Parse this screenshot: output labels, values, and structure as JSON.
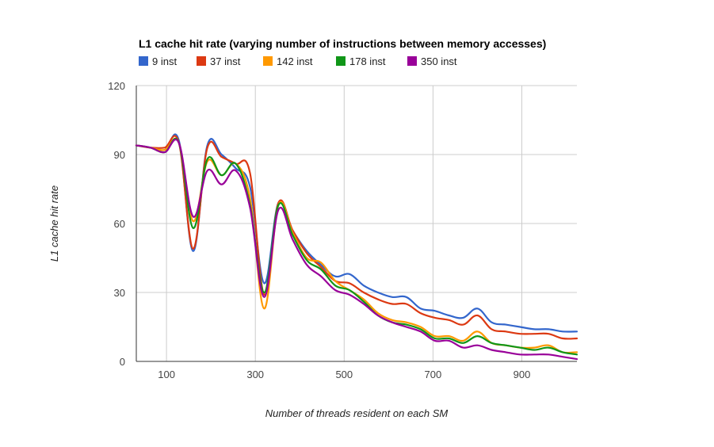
{
  "chart_data": {
    "type": "line",
    "title": "L1 cache hit rate (varying number of instructions between memory accesses)",
    "xlabel": "Number of threads resident on each SM",
    "ylabel": "L1 cache hit rate",
    "xlim": [
      32,
      1024
    ],
    "ylim": [
      0,
      120
    ],
    "x_ticks": [
      100,
      300,
      500,
      700,
      900
    ],
    "y_ticks": [
      0,
      30,
      60,
      90,
      120
    ],
    "grid": true,
    "legend_position": "top-left",
    "x": [
      32,
      64,
      96,
      128,
      160,
      192,
      224,
      256,
      288,
      320,
      352,
      384,
      416,
      448,
      480,
      512,
      544,
      576,
      608,
      640,
      672,
      704,
      736,
      768,
      800,
      832,
      864,
      896,
      928,
      960,
      992,
      1024
    ],
    "series": [
      {
        "name": "9 inst",
        "color": "#3366cc",
        "values": [
          94,
          93,
          92,
          96,
          48,
          94,
          90,
          84,
          76,
          34,
          69,
          57,
          48,
          42,
          37,
          38,
          33,
          30,
          28,
          28,
          23,
          22,
          20,
          19,
          23,
          17,
          16,
          15,
          14,
          14,
          13,
          13
        ]
      },
      {
        "name": "37 inst",
        "color": "#dc3912",
        "values": [
          94,
          93,
          93,
          95,
          49,
          93,
          89,
          86,
          82,
          29,
          69,
          57,
          47,
          41,
          35,
          34,
          30,
          27,
          25,
          25,
          21,
          19,
          18,
          16,
          20,
          14,
          13,
          12,
          12,
          12,
          10,
          10
        ]
      },
      {
        "name": "142 inst",
        "color": "#ff9900",
        "values": [
          94,
          93,
          92,
          95,
          61,
          87,
          81,
          86,
          71,
          23,
          68,
          56,
          45,
          43,
          35,
          31,
          27,
          21,
          18,
          17,
          15,
          11,
          11,
          9,
          13,
          8,
          7,
          6,
          6,
          7,
          4,
          4
        ]
      },
      {
        "name": "178 inst",
        "color": "#109618",
        "values": [
          94,
          93,
          91,
          95,
          58,
          88,
          81,
          86,
          68,
          30,
          68,
          55,
          44,
          40,
          33,
          31,
          26,
          20,
          17,
          16,
          14,
          10,
          10,
          8,
          11,
          8,
          7,
          6,
          5,
          6,
          4,
          3
        ]
      },
      {
        "name": "350 inst",
        "color": "#990099",
        "values": [
          94,
          93,
          91,
          95,
          63,
          83,
          77,
          83,
          67,
          28,
          66,
          53,
          42,
          37,
          31,
          29,
          25,
          20,
          17,
          15,
          13,
          9,
          9,
          6,
          7,
          5,
          4,
          3,
          3,
          3,
          2,
          1
        ]
      }
    ]
  }
}
